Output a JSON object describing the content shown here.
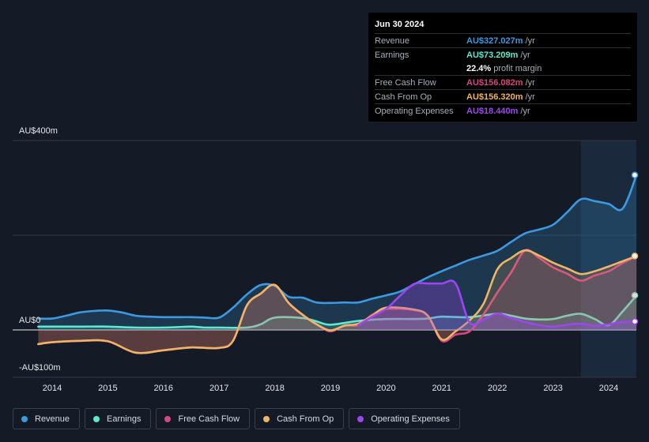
{
  "tooltip": {
    "date": "Jun 30 2024",
    "rows": [
      {
        "label": "Revenue",
        "value": "AU$327.027m",
        "unit": "/yr",
        "color": "#3b9ae1"
      },
      {
        "label": "Earnings",
        "value": "AU$73.209m",
        "unit": "/yr",
        "color": "#5ee8d0"
      },
      {
        "label": "",
        "value": "22.4%",
        "unit": "profit margin",
        "color": "#ffffff"
      },
      {
        "label": "Free Cash Flow",
        "value": "AU$156.082m",
        "unit": "/yr",
        "color": "#d6467f"
      },
      {
        "label": "Cash From Op",
        "value": "AU$156.320m",
        "unit": "/yr",
        "color": "#f0b466"
      },
      {
        "label": "Operating Expenses",
        "value": "AU$18.440m",
        "unit": "/yr",
        "color": "#9b46f0"
      }
    ]
  },
  "legend": [
    {
      "label": "Revenue",
      "color": "#3b9ae1"
    },
    {
      "label": "Earnings",
      "color": "#5ee8d0"
    },
    {
      "label": "Free Cash Flow",
      "color": "#d6467f"
    },
    {
      "label": "Cash From Op",
      "color": "#f0b466"
    },
    {
      "label": "Operating Expenses",
      "color": "#9b46f0"
    }
  ],
  "chart_data": {
    "type": "area",
    "ylim": [
      -100,
      400
    ],
    "y_ticks": [
      {
        "value": 400,
        "label": "AU$400m"
      },
      {
        "value": 0,
        "label": "AU$0"
      },
      {
        "value": -100,
        "label": "-AU$100m"
      }
    ],
    "x_ticks": [
      {
        "value": 2014,
        "label": "2014"
      },
      {
        "value": 2015,
        "label": "2015"
      },
      {
        "value": 2016,
        "label": "2016"
      },
      {
        "value": 2017,
        "label": "2017"
      },
      {
        "value": 2018,
        "label": "2018"
      },
      {
        "value": 2019,
        "label": "2019"
      },
      {
        "value": 2020,
        "label": "2020"
      },
      {
        "value": 2021,
        "label": "2021"
      },
      {
        "value": 2022,
        "label": "2022"
      },
      {
        "value": 2023,
        "label": "2023"
      },
      {
        "value": 2024,
        "label": "2024"
      }
    ],
    "xlim": [
      2013.5,
      2024.5
    ],
    "highlight_from": 2023.5,
    "series": [
      {
        "name": "Revenue",
        "color": "#3b9ae1",
        "fill": true,
        "points": [
          [
            2013.75,
            24
          ],
          [
            2014.0,
            24
          ],
          [
            2014.25,
            30
          ],
          [
            2014.5,
            37
          ],
          [
            2014.75,
            40
          ],
          [
            2015.0,
            41
          ],
          [
            2015.25,
            37
          ],
          [
            2015.5,
            30
          ],
          [
            2015.75,
            28
          ],
          [
            2016.0,
            27
          ],
          [
            2016.25,
            27
          ],
          [
            2016.5,
            27
          ],
          [
            2016.75,
            26
          ],
          [
            2017.0,
            26
          ],
          [
            2017.25,
            47
          ],
          [
            2017.5,
            75
          ],
          [
            2017.75,
            95
          ],
          [
            2018.0,
            93
          ],
          [
            2018.25,
            70
          ],
          [
            2018.5,
            68
          ],
          [
            2018.75,
            58
          ],
          [
            2019.0,
            57
          ],
          [
            2019.25,
            58
          ],
          [
            2019.5,
            58
          ],
          [
            2019.75,
            66
          ],
          [
            2020.0,
            73
          ],
          [
            2020.25,
            81
          ],
          [
            2020.5,
            96
          ],
          [
            2020.75,
            111
          ],
          [
            2021.0,
            124
          ],
          [
            2021.25,
            136
          ],
          [
            2021.5,
            148
          ],
          [
            2021.75,
            157
          ],
          [
            2022.0,
            167
          ],
          [
            2022.25,
            186
          ],
          [
            2022.5,
            204
          ],
          [
            2022.75,
            212
          ],
          [
            2023.0,
            222
          ],
          [
            2023.25,
            248
          ],
          [
            2023.5,
            276
          ],
          [
            2023.75,
            272
          ],
          [
            2024.0,
            266
          ],
          [
            2024.25,
            256
          ],
          [
            2024.5,
            327
          ]
        ]
      },
      {
        "name": "Earnings",
        "color": "#5ee8d0",
        "fill": true,
        "points": [
          [
            2013.75,
            7
          ],
          [
            2014.0,
            7
          ],
          [
            2014.5,
            7
          ],
          [
            2015.0,
            7
          ],
          [
            2015.5,
            5
          ],
          [
            2016.0,
            5
          ],
          [
            2016.25,
            6
          ],
          [
            2016.5,
            7
          ],
          [
            2016.75,
            5
          ],
          [
            2017.0,
            5
          ],
          [
            2017.5,
            5
          ],
          [
            2017.75,
            12
          ],
          [
            2018.0,
            26
          ],
          [
            2018.5,
            25
          ],
          [
            2018.75,
            18
          ],
          [
            2019.0,
            11
          ],
          [
            2019.5,
            19
          ],
          [
            2020.0,
            23
          ],
          [
            2020.5,
            23
          ],
          [
            2020.75,
            24
          ],
          [
            2021.0,
            28
          ],
          [
            2021.5,
            27
          ],
          [
            2022.0,
            34
          ],
          [
            2022.25,
            30
          ],
          [
            2022.5,
            24
          ],
          [
            2022.75,
            22
          ],
          [
            2023.0,
            23
          ],
          [
            2023.25,
            30
          ],
          [
            2023.5,
            34
          ],
          [
            2023.75,
            23
          ],
          [
            2024.0,
            10
          ],
          [
            2024.25,
            39
          ],
          [
            2024.5,
            73
          ]
        ]
      },
      {
        "name": "Free Cash Flow",
        "color": "#d6467f",
        "fill": true,
        "points": [
          [
            2013.75,
            -30
          ],
          [
            2014.0,
            -26
          ],
          [
            2014.5,
            -23
          ],
          [
            2015.0,
            -24
          ],
          [
            2015.5,
            -48
          ],
          [
            2016.0,
            -43
          ],
          [
            2016.5,
            -37
          ],
          [
            2017.0,
            -38
          ],
          [
            2017.25,
            -23
          ],
          [
            2017.5,
            52
          ],
          [
            2017.75,
            77
          ],
          [
            2018.0,
            95
          ],
          [
            2018.25,
            57
          ],
          [
            2018.5,
            32
          ],
          [
            2018.75,
            12
          ],
          [
            2019.0,
            -3
          ],
          [
            2019.25,
            9
          ],
          [
            2019.5,
            10
          ],
          [
            2019.75,
            32
          ],
          [
            2020.0,
            44
          ],
          [
            2020.5,
            42
          ],
          [
            2020.75,
            30
          ],
          [
            2021.0,
            -23
          ],
          [
            2021.25,
            -10
          ],
          [
            2021.5,
            -3
          ],
          [
            2021.75,
            33
          ],
          [
            2022.0,
            79
          ],
          [
            2022.25,
            122
          ],
          [
            2022.5,
            168
          ],
          [
            2022.75,
            152
          ],
          [
            2023.0,
            132
          ],
          [
            2023.25,
            119
          ],
          [
            2023.5,
            104
          ],
          [
            2023.75,
            115
          ],
          [
            2024.0,
            124
          ],
          [
            2024.25,
            141
          ],
          [
            2024.5,
            156
          ]
        ]
      },
      {
        "name": "Cash From Op",
        "color": "#f0b466",
        "fill": true,
        "points": [
          [
            2013.75,
            -30
          ],
          [
            2014.0,
            -26
          ],
          [
            2014.5,
            -23
          ],
          [
            2015.0,
            -24
          ],
          [
            2015.5,
            -48
          ],
          [
            2016.0,
            -43
          ],
          [
            2016.5,
            -37
          ],
          [
            2017.0,
            -38
          ],
          [
            2017.25,
            -23
          ],
          [
            2017.5,
            52
          ],
          [
            2017.75,
            77
          ],
          [
            2018.0,
            95
          ],
          [
            2018.25,
            57
          ],
          [
            2018.5,
            32
          ],
          [
            2018.75,
            12
          ],
          [
            2019.0,
            -1
          ],
          [
            2019.25,
            9
          ],
          [
            2019.5,
            13
          ],
          [
            2019.75,
            30
          ],
          [
            2020.0,
            47
          ],
          [
            2020.5,
            43
          ],
          [
            2020.75,
            30
          ],
          [
            2021.0,
            -20
          ],
          [
            2021.25,
            -3
          ],
          [
            2021.5,
            20
          ],
          [
            2021.75,
            55
          ],
          [
            2022.0,
            128
          ],
          [
            2022.25,
            152
          ],
          [
            2022.5,
            168
          ],
          [
            2022.75,
            157
          ],
          [
            2023.0,
            142
          ],
          [
            2023.25,
            130
          ],
          [
            2023.5,
            118
          ],
          [
            2023.75,
            124
          ],
          [
            2024.0,
            134
          ],
          [
            2024.25,
            145
          ],
          [
            2024.5,
            156
          ]
        ]
      },
      {
        "name": "Operating Expenses",
        "color": "#9b46f0",
        "fill": true,
        "points": [
          [
            2019.5,
            10
          ],
          [
            2019.75,
            28
          ],
          [
            2020.0,
            44
          ],
          [
            2020.25,
            72
          ],
          [
            2020.5,
            97
          ],
          [
            2020.75,
            98
          ],
          [
            2021.0,
            98
          ],
          [
            2021.25,
            98
          ],
          [
            2021.5,
            16
          ],
          [
            2021.75,
            22
          ],
          [
            2022.0,
            34
          ],
          [
            2022.25,
            25
          ],
          [
            2022.5,
            17
          ],
          [
            2022.75,
            10
          ],
          [
            2023.0,
            7
          ],
          [
            2023.25,
            11
          ],
          [
            2023.5,
            13
          ],
          [
            2023.75,
            9
          ],
          [
            2024.0,
            12
          ],
          [
            2024.25,
            17
          ],
          [
            2024.5,
            18
          ]
        ]
      }
    ]
  }
}
